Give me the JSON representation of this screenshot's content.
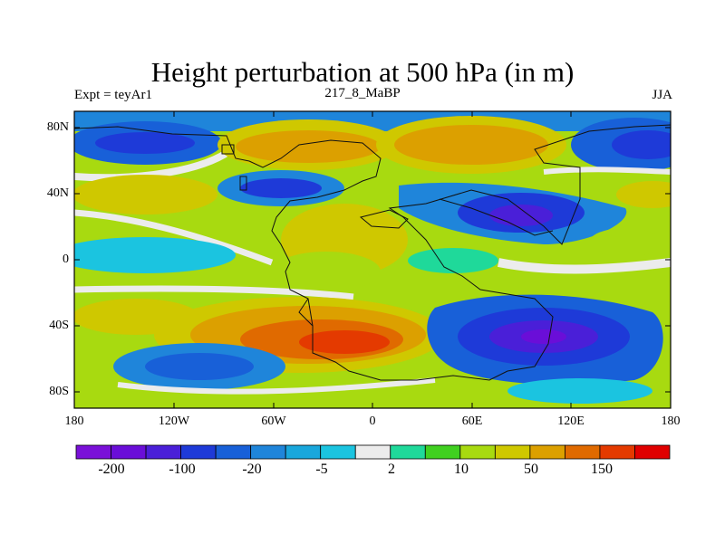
{
  "title": "Height perturbation at 500 hPa (in m)",
  "left_label": "Expt = teyAr1",
  "center_label": "217_8_MaBP",
  "right_label": "JJA",
  "y_ticks": [
    "80N",
    "40N",
    "0",
    "40S",
    "80S"
  ],
  "x_ticks": [
    "180",
    "120W",
    "60W",
    "0",
    "60E",
    "120E",
    "180"
  ],
  "colorbar": {
    "colors": [
      "#7a10d8",
      "#6a0ed8",
      "#4a1fd8",
      "#1e3ad8",
      "#1860d8",
      "#1f85da",
      "#19a7dc",
      "#1bc4e0",
      "#ececec",
      "#1fd99a",
      "#40d020",
      "#a8da10",
      "#cfc800",
      "#dca000",
      "#e06a00",
      "#e43a00",
      "#e00000"
    ],
    "labels": [
      "-200",
      "-100",
      "-20",
      "-5",
      "2",
      "10",
      "50",
      "150"
    ]
  },
  "chart_data": {
    "type": "heatmap",
    "title": "Height perturbation at 500 hPa (in m)",
    "subtitle_left": "Expt = teyAr1",
    "subtitle_center": "217_8_MaBP",
    "subtitle_right": "JJA",
    "x_range": [
      -180,
      180
    ],
    "y_range": [
      -90,
      90
    ],
    "x_ticks": [
      "180",
      "120W",
      "60W",
      "0",
      "60E",
      "120E",
      "180"
    ],
    "y_ticks": [
      "80N",
      "40N",
      "0",
      "40S",
      "80S"
    ],
    "colorbar_labels": [
      "-200",
      "-100",
      "-20",
      "-5",
      "2",
      "10",
      "50",
      "150"
    ]
  }
}
